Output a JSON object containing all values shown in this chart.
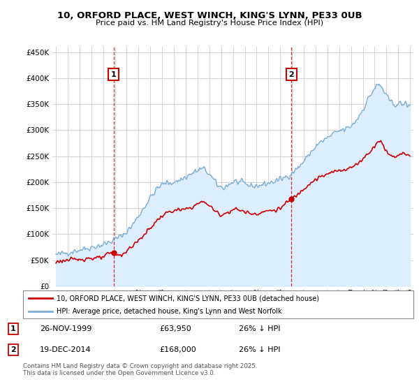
{
  "title": "10, ORFORD PLACE, WEST WINCH, KING'S LYNN, PE33 0UB",
  "subtitle": "Price paid vs. HM Land Registry's House Price Index (HPI)",
  "legend_line1": "10, ORFORD PLACE, WEST WINCH, KING'S LYNN, PE33 0UB (detached house)",
  "legend_line2": "HPI: Average price, detached house, King's Lynn and West Norfolk",
  "annotation1_date": "26-NOV-1999",
  "annotation1_price": "£63,950",
  "annotation1_hpi": "26% ↓ HPI",
  "annotation2_date": "19-DEC-2014",
  "annotation2_price": "£168,000",
  "annotation2_hpi": "26% ↓ HPI",
  "footer": "Contains HM Land Registry data © Crown copyright and database right 2025.\nThis data is licensed under the Open Government Licence v3.0.",
  "red_color": "#cc0000",
  "blue_color": "#7aadd4",
  "blue_fill": "#ddeeff",
  "background_color": "#ffffff",
  "grid_color": "#cccccc",
  "ylim": [
    0,
    460000
  ],
  "yticks": [
    0,
    50000,
    100000,
    150000,
    200000,
    250000,
    300000,
    350000,
    400000,
    450000
  ],
  "xlim_start": 1994.7,
  "xlim_end": 2025.3,
  "p1_x": 1999.88,
  "p1_y": 63950,
  "p2_x": 2014.96,
  "p2_y": 168000
}
